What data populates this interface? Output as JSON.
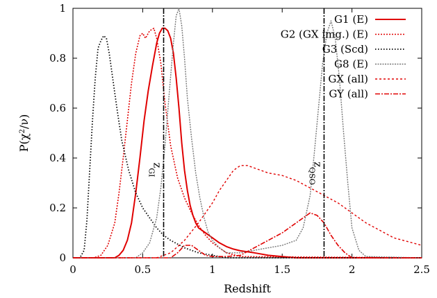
{
  "chart_data": {
    "type": "line",
    "xlabel": "Redshift",
    "ylabel": "P(χ²/ν)",
    "ylabel_parts": {
      "base": "P(χ",
      "sup": "2",
      "tail": "/ν)"
    },
    "xlim": [
      0,
      2.5
    ],
    "ylim": [
      0,
      1
    ],
    "x_ticks": [
      0,
      0.5,
      1,
      1.5,
      2,
      2.5
    ],
    "x_tick_labels": [
      "0",
      "0.5",
      "1",
      "1.5",
      "2",
      "2.5"
    ],
    "y_ticks": [
      0,
      0.2,
      0.4,
      0.6,
      0.8,
      1
    ],
    "y_tick_labels": [
      "0",
      "0.2",
      "0.4",
      "0.6",
      "0.8",
      "1"
    ],
    "grid": false,
    "legend_position": "top-right",
    "series": [
      {
        "name": "G1 (E)",
        "color": "#e00000",
        "dash": "solid",
        "width": 2,
        "x": [
          0,
          0.3,
          0.33,
          0.36,
          0.39,
          0.42,
          0.45,
          0.48,
          0.51,
          0.54,
          0.57,
          0.6,
          0.62,
          0.64,
          0.66,
          0.68,
          0.7,
          0.72,
          0.74,
          0.76,
          0.78,
          0.8,
          0.82,
          0.84,
          0.86,
          0.88,
          0.9,
          0.95,
          1.0,
          1.05,
          1.1,
          1.15,
          1.2,
          1.3,
          1.4,
          1.5,
          1.6,
          2.5
        ],
        "y": [
          0,
          0,
          0.01,
          0.03,
          0.07,
          0.14,
          0.26,
          0.4,
          0.55,
          0.67,
          0.77,
          0.86,
          0.9,
          0.92,
          0.92,
          0.91,
          0.88,
          0.82,
          0.72,
          0.6,
          0.46,
          0.35,
          0.27,
          0.21,
          0.17,
          0.14,
          0.12,
          0.1,
          0.08,
          0.06,
          0.045,
          0.035,
          0.028,
          0.02,
          0.01,
          0.005,
          0,
          0
        ]
      },
      {
        "name": "G2 (GX img.) (E)",
        "color": "#e00000",
        "dash": "2,2",
        "width": 1.6,
        "x": [
          0,
          0.15,
          0.2,
          0.25,
          0.3,
          0.33,
          0.36,
          0.39,
          0.42,
          0.45,
          0.48,
          0.5,
          0.52,
          0.55,
          0.58,
          0.6,
          0.63,
          0.66,
          0.7,
          0.75,
          0.8,
          0.85,
          0.9,
          0.95,
          1.0,
          1.05,
          1.1,
          1.2,
          2.5
        ],
        "y": [
          0,
          0,
          0.01,
          0.05,
          0.14,
          0.26,
          0.4,
          0.55,
          0.7,
          0.82,
          0.89,
          0.9,
          0.88,
          0.91,
          0.92,
          0.88,
          0.78,
          0.62,
          0.45,
          0.32,
          0.24,
          0.18,
          0.13,
          0.09,
          0.06,
          0.04,
          0.02,
          0.005,
          0
        ]
      },
      {
        "name": "G3 (Scd)",
        "color": "#000000",
        "dash": "1.5,2.5",
        "width": 1.8,
        "x": [
          0,
          0.05,
          0.08,
          0.1,
          0.12,
          0.14,
          0.16,
          0.18,
          0.2,
          0.22,
          0.24,
          0.26,
          0.28,
          0.3,
          0.32,
          0.35,
          0.4,
          0.45,
          0.5,
          0.55,
          0.6,
          0.65,
          0.7,
          0.8,
          0.9,
          1.0,
          1.1,
          2.5
        ],
        "y": [
          0,
          0,
          0.03,
          0.15,
          0.35,
          0.55,
          0.72,
          0.84,
          0.87,
          0.89,
          0.88,
          0.82,
          0.74,
          0.66,
          0.58,
          0.47,
          0.35,
          0.26,
          0.2,
          0.16,
          0.12,
          0.09,
          0.07,
          0.04,
          0.02,
          0.01,
          0,
          0
        ]
      },
      {
        "name": "G8 (E)",
        "color": "#777777",
        "dash": "2,1.5",
        "width": 1.4,
        "x": [
          0,
          0.45,
          0.5,
          0.55,
          0.6,
          0.63,
          0.66,
          0.69,
          0.72,
          0.74,
          0.76,
          0.78,
          0.8,
          0.82,
          0.85,
          0.88,
          0.91,
          0.94,
          0.97,
          1.0,
          1.05,
          1.1,
          1.2,
          1.3,
          1.4,
          1.5,
          1.6,
          1.65,
          1.7,
          1.73,
          1.76,
          1.79,
          1.82,
          1.85,
          1.88,
          1.91,
          1.94,
          1.97,
          2.0,
          2.05,
          2.1,
          2.5
        ],
        "y": [
          0,
          0,
          0.02,
          0.06,
          0.16,
          0.28,
          0.45,
          0.66,
          0.86,
          0.97,
          1.0,
          0.93,
          0.8,
          0.64,
          0.48,
          0.34,
          0.24,
          0.16,
          0.1,
          0.07,
          0.04,
          0.02,
          0.02,
          0.03,
          0.04,
          0.05,
          0.07,
          0.12,
          0.25,
          0.42,
          0.6,
          0.78,
          0.9,
          0.95,
          0.88,
          0.72,
          0.5,
          0.3,
          0.12,
          0.03,
          0.005,
          0
        ]
      },
      {
        "name": "GX (all)",
        "color": "#e00000",
        "dash": "3,3",
        "width": 1.4,
        "x": [
          0,
          0.6,
          0.7,
          0.8,
          0.9,
          1.0,
          1.05,
          1.1,
          1.15,
          1.2,
          1.25,
          1.3,
          1.35,
          1.4,
          1.5,
          1.6,
          1.7,
          1.8,
          1.9,
          2.0,
          2.1,
          2.2,
          2.3,
          2.4,
          2.5
        ],
        "y": [
          0,
          0,
          0.02,
          0.07,
          0.14,
          0.22,
          0.27,
          0.31,
          0.35,
          0.37,
          0.37,
          0.36,
          0.35,
          0.34,
          0.33,
          0.31,
          0.28,
          0.25,
          0.22,
          0.18,
          0.14,
          0.11,
          0.08,
          0.065,
          0.05
        ]
      },
      {
        "name": "GY (all)",
        "color": "#e00000",
        "dash": "7,2,2,2",
        "width": 1.6,
        "x": [
          0,
          0.7,
          0.75,
          0.8,
          0.85,
          0.9,
          0.95,
          1.0,
          1.1,
          1.2,
          1.3,
          1.4,
          1.5,
          1.55,
          1.6,
          1.65,
          1.7,
          1.75,
          1.8,
          1.85,
          1.9,
          1.95,
          2.0,
          2.5
        ],
        "y": [
          0,
          0,
          0.02,
          0.05,
          0.05,
          0.03,
          0.01,
          0.005,
          0.005,
          0.01,
          0.04,
          0.07,
          0.1,
          0.12,
          0.14,
          0.16,
          0.18,
          0.17,
          0.14,
          0.09,
          0.05,
          0.02,
          0,
          0
        ]
      }
    ],
    "markers": [
      {
        "x": 0.65,
        "label": "zGI",
        "label_parts": {
          "base": "z",
          "sub": "GI"
        }
      },
      {
        "x": 1.8,
        "label": "zQSO",
        "label_parts": {
          "base": "z",
          "sub": "QSO"
        }
      }
    ]
  }
}
